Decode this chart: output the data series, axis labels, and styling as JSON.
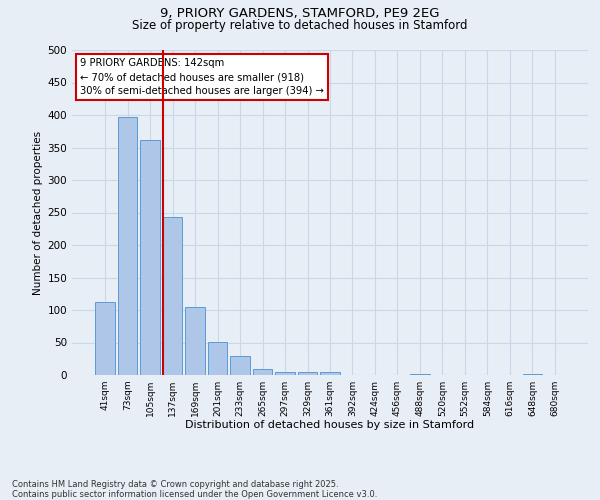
{
  "title1": "9, PRIORY GARDENS, STAMFORD, PE9 2EG",
  "title2": "Size of property relative to detached houses in Stamford",
  "xlabel": "Distribution of detached houses by size in Stamford",
  "ylabel": "Number of detached properties",
  "categories": [
    "41sqm",
    "73sqm",
    "105sqm",
    "137sqm",
    "169sqm",
    "201sqm",
    "233sqm",
    "265sqm",
    "297sqm",
    "329sqm",
    "361sqm",
    "392sqm",
    "424sqm",
    "456sqm",
    "488sqm",
    "520sqm",
    "552sqm",
    "584sqm",
    "616sqm",
    "648sqm",
    "680sqm"
  ],
  "values": [
    113,
    397,
    362,
    243,
    104,
    51,
    30,
    9,
    5,
    4,
    5,
    0,
    0,
    0,
    1,
    0,
    0,
    0,
    0,
    1,
    0
  ],
  "bar_color": "#aec6e8",
  "bar_edge_color": "#5b9bd5",
  "vline_color": "#cc0000",
  "vline_x_index": 3,
  "annotation_text": "9 PRIORY GARDENS: 142sqm\n← 70% of detached houses are smaller (918)\n30% of semi-detached houses are larger (394) →",
  "annotation_box_facecolor": "#ffffff",
  "annotation_box_edgecolor": "#cc0000",
  "ylim": [
    0,
    500
  ],
  "yticks": [
    0,
    50,
    100,
    150,
    200,
    250,
    300,
    350,
    400,
    450,
    500
  ],
  "grid_color": "#c8d8ea",
  "background_color": "#e8eef5",
  "footnote_line1": "Contains HM Land Registry data © Crown copyright and database right 2025.",
  "footnote_line2": "Contains public sector information licensed under the Open Government Licence v3.0."
}
